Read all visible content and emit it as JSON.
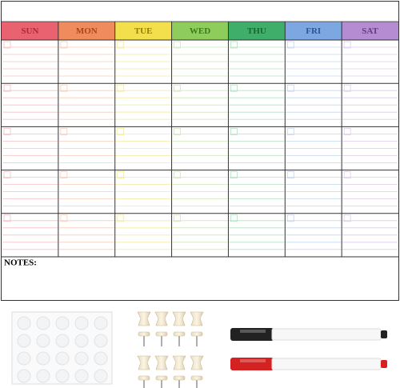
{
  "days": [
    "SUN",
    "MON",
    "TUE",
    "WED",
    "THU",
    "FRI",
    "SAT"
  ],
  "notes_label": "NOTES:"
}
